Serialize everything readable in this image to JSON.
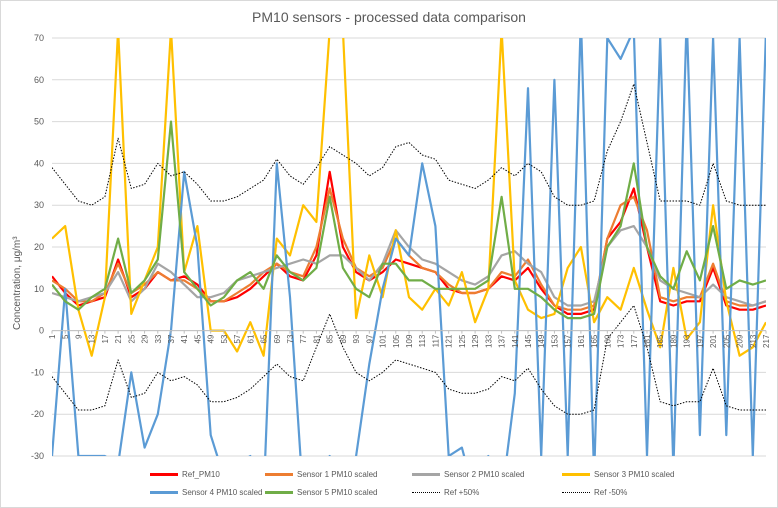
{
  "chart_data": {
    "type": "line",
    "title": "PM10 sensors - processed data comparison",
    "ylabel": "Concentration, μg/m³",
    "xlabel": "",
    "ylim": [
      -30,
      70
    ],
    "yticks": [
      -30,
      -20,
      -10,
      0,
      10,
      20,
      30,
      40,
      50,
      60,
      70
    ],
    "x_range": [
      1,
      217
    ],
    "xticks": [
      1,
      5,
      9,
      13,
      17,
      21,
      25,
      29,
      33,
      37,
      41,
      45,
      49,
      53,
      57,
      61,
      65,
      69,
      73,
      77,
      81,
      85,
      89,
      93,
      97,
      101,
      105,
      109,
      113,
      117,
      121,
      125,
      129,
      133,
      137,
      141,
      145,
      149,
      153,
      157,
      161,
      165,
      169,
      173,
      177,
      181,
      185,
      189,
      193,
      197,
      201,
      205,
      209,
      213,
      217
    ],
    "grid": true,
    "legend_position": "bottom",
    "x": [
      1,
      5,
      9,
      13,
      17,
      21,
      25,
      29,
      33,
      37,
      41,
      45,
      49,
      53,
      57,
      61,
      65,
      69,
      73,
      77,
      81,
      85,
      89,
      93,
      97,
      101,
      105,
      109,
      113,
      117,
      121,
      125,
      129,
      133,
      137,
      141,
      145,
      149,
      153,
      157,
      161,
      165,
      169,
      173,
      177,
      181,
      185,
      189,
      193,
      197,
      201,
      205,
      209,
      213,
      217
    ],
    "series": [
      {
        "name": "Ref_PM10",
        "color": "#ff0000",
        "dash": "",
        "width": 2.2,
        "values": [
          13,
          9,
          6,
          7,
          8,
          17,
          8,
          10,
          14,
          12,
          13,
          11,
          7,
          7,
          8,
          10,
          13,
          16,
          13,
          12,
          18,
          38,
          20,
          14,
          12,
          14,
          17,
          16,
          15,
          14,
          10,
          9,
          9,
          10,
          13,
          12,
          15,
          10,
          6,
          4,
          4,
          5,
          22,
          26,
          34,
          20,
          7,
          6,
          7,
          7,
          15,
          6,
          5,
          5,
          6
        ]
      },
      {
        "name": "Sensor 1 PM10 scaled",
        "color": "#ed7d31",
        "dash": "",
        "width": 2.2,
        "values": [
          12,
          10,
          7,
          7,
          9,
          16,
          9,
          11,
          14,
          12,
          12,
          10,
          7,
          7,
          9,
          11,
          14,
          16,
          14,
          13,
          20,
          34,
          22,
          15,
          13,
          15,
          22,
          18,
          15,
          14,
          11,
          9,
          9,
          10,
          14,
          13,
          17,
          11,
          6,
          5,
          5,
          6,
          22,
          30,
          32,
          24,
          8,
          7,
          8,
          8,
          16,
          7,
          6,
          6,
          7
        ]
      },
      {
        "name": "Sensor 2 PM10 scaled",
        "color": "#a5a5a5",
        "dash": "",
        "width": 2.2,
        "values": [
          9,
          8,
          7,
          8,
          9,
          14,
          7,
          10,
          16,
          14,
          11,
          8,
          8,
          9,
          12,
          13,
          14,
          15,
          16,
          17,
          16,
          18,
          18,
          15,
          12,
          16,
          24,
          20,
          17,
          16,
          14,
          12,
          11,
          13,
          18,
          19,
          16,
          14,
          8,
          6,
          6,
          7,
          20,
          24,
          25,
          20,
          12,
          10,
          9,
          8,
          11,
          8,
          7,
          6,
          7
        ]
      },
      {
        "name": "Sensor 3 PM10 scaled",
        "color": "#ffc000",
        "dash": "",
        "width": 2.2,
        "values": [
          22,
          25,
          5,
          -6,
          8,
          72,
          4,
          12,
          20,
          72,
          14,
          25,
          0,
          0,
          -5,
          2,
          -6,
          22,
          18,
          30,
          26,
          72,
          72,
          3,
          18,
          8,
          24,
          8,
          5,
          10,
          6,
          14,
          2,
          10,
          72,
          12,
          5,
          3,
          4,
          15,
          20,
          2,
          8,
          5,
          15,
          5,
          -4,
          15,
          -2,
          2,
          30,
          7,
          -6,
          -4,
          2
        ]
      },
      {
        "name": "Sensor 4 PM10 scaled",
        "color": "#5b9bd5",
        "dash": "",
        "width": 2.2,
        "values": [
          -30,
          10,
          -30,
          -30,
          -30,
          -32,
          -10,
          -28,
          -20,
          0,
          38,
          20,
          -25,
          -35,
          -32,
          -30,
          -40,
          40,
          8,
          -40,
          -35,
          -30,
          -40,
          -30,
          -8,
          10,
          22,
          18,
          40,
          25,
          -30,
          -28,
          -40,
          -30,
          -40,
          -15,
          58,
          -30,
          60,
          -30,
          75,
          -35,
          70,
          65,
          72,
          -30,
          70,
          -33,
          75,
          -25,
          70,
          -25,
          70,
          -30,
          72
        ]
      },
      {
        "name": "Sensor 5 PM10 scaled",
        "color": "#70ad47",
        "dash": "",
        "width": 2.2,
        "values": [
          11,
          7,
          5,
          8,
          10,
          22,
          9,
          12,
          17,
          50,
          14,
          10,
          6,
          8,
          12,
          14,
          10,
          18,
          14,
          12,
          15,
          32,
          15,
          10,
          8,
          16,
          16,
          12,
          12,
          10,
          10,
          10,
          10,
          12,
          32,
          10,
          10,
          8,
          5,
          3,
          3,
          4,
          20,
          25,
          40,
          20,
          13,
          10,
          19,
          12,
          25,
          10,
          12,
          11,
          12
        ]
      },
      {
        "name": "Ref +50%",
        "color": "#000000",
        "dash": "1.5,1.5",
        "width": 1,
        "values": [
          39,
          35,
          31,
          30,
          32,
          46,
          34,
          35,
          40,
          37,
          38,
          35,
          31,
          31,
          32,
          34,
          36,
          41,
          37,
          35,
          39,
          44,
          42,
          40,
          37,
          39,
          44,
          45,
          42,
          41,
          36,
          35,
          34,
          36,
          39,
          37,
          40,
          38,
          32,
          30,
          30,
          31,
          43,
          50,
          59,
          45,
          31,
          31,
          31,
          30,
          40,
          31,
          30,
          30,
          30
        ]
      },
      {
        "name": "Ref -50%",
        "color": "#000000",
        "dash": "1.5,1.5",
        "width": 1,
        "values": [
          -11,
          -15,
          -19,
          -19,
          -18,
          -7,
          -16,
          -15,
          -10,
          -12,
          -11,
          -13,
          -17,
          -17,
          -16,
          -14,
          -11,
          -8,
          -11,
          -12,
          -4,
          4,
          -4,
          -10,
          -12,
          -10,
          -7,
          -8,
          -9,
          -10,
          -14,
          -15,
          -15,
          -14,
          -11,
          -12,
          -9,
          -14,
          -18,
          -20,
          -20,
          -19,
          -2,
          2,
          6,
          -4,
          -17,
          -18,
          -17,
          -17,
          -9,
          -18,
          -19,
          -19,
          -19
        ]
      }
    ]
  }
}
